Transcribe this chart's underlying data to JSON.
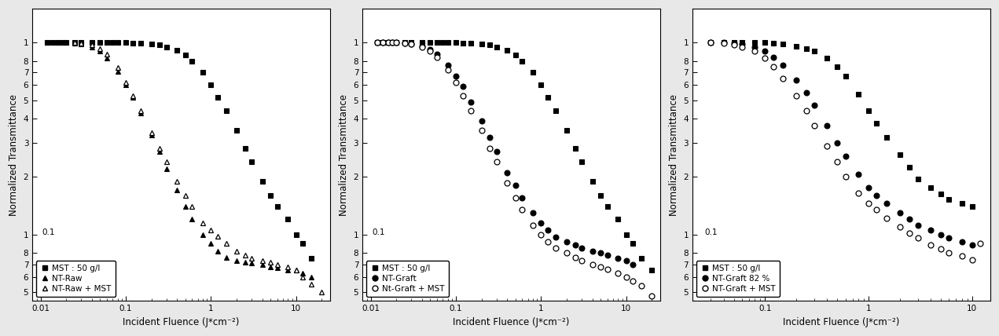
{
  "panels": [
    {
      "legend": [
        "MST : 50 g/l",
        "NT-Raw",
        "NT-Raw + MST"
      ],
      "markers": [
        "s",
        "^",
        "^"
      ],
      "fillstyles": [
        "full",
        "full",
        "none"
      ],
      "colors": [
        "black",
        "black",
        "black"
      ],
      "markersizes": [
        5,
        5,
        5
      ],
      "series": [
        {
          "x": [
            0.012,
            0.014,
            0.016,
            0.018,
            0.02,
            0.025,
            0.03,
            0.04,
            0.05,
            0.06,
            0.07,
            0.08,
            0.1,
            0.12,
            0.15,
            0.2,
            0.25,
            0.3,
            0.4,
            0.5,
            0.6,
            0.8,
            1.0,
            1.2,
            1.5,
            2.0,
            2.5,
            3.0,
            4.0,
            5.0,
            6.0,
            8.0,
            10.0,
            12.0,
            15.0
          ],
          "y": [
            1.0,
            1.0,
            1.0,
            1.0,
            1.0,
            1.0,
            1.0,
            1.0,
            1.0,
            1.0,
            1.0,
            1.0,
            1.0,
            0.99,
            0.99,
            0.98,
            0.97,
            0.95,
            0.91,
            0.86,
            0.8,
            0.7,
            0.6,
            0.52,
            0.44,
            0.35,
            0.28,
            0.24,
            0.19,
            0.16,
            0.14,
            0.12,
            0.1,
            0.09,
            0.075
          ]
        },
        {
          "x": [
            0.012,
            0.015,
            0.018,
            0.02,
            0.025,
            0.03,
            0.04,
            0.05,
            0.06,
            0.08,
            0.1,
            0.12,
            0.15,
            0.2,
            0.25,
            0.3,
            0.4,
            0.5,
            0.6,
            0.8,
            1.0,
            1.2,
            1.5,
            2.0,
            2.5,
            3.0,
            4.0,
            5.0,
            6.0,
            8.0,
            10.0,
            12.0,
            15.0
          ],
          "y": [
            1.0,
            1.0,
            1.0,
            1.0,
            0.99,
            0.98,
            0.95,
            0.9,
            0.83,
            0.71,
            0.6,
            0.52,
            0.43,
            0.33,
            0.27,
            0.22,
            0.17,
            0.14,
            0.12,
            0.1,
            0.09,
            0.082,
            0.076,
            0.073,
            0.072,
            0.071,
            0.07,
            0.068,
            0.067,
            0.065,
            0.065,
            0.063,
            0.06
          ]
        },
        {
          "x": [
            0.025,
            0.03,
            0.04,
            0.05,
            0.06,
            0.08,
            0.1,
            0.12,
            0.15,
            0.2,
            0.25,
            0.3,
            0.4,
            0.5,
            0.6,
            0.8,
            1.0,
            1.2,
            1.5,
            2.0,
            2.5,
            3.0,
            4.0,
            5.0,
            6.0,
            8.0,
            10.0,
            12.0,
            15.0,
            20.0
          ],
          "y": [
            1.0,
            0.99,
            0.97,
            0.93,
            0.87,
            0.74,
            0.62,
            0.53,
            0.44,
            0.34,
            0.28,
            0.24,
            0.19,
            0.16,
            0.14,
            0.115,
            0.105,
            0.098,
            0.09,
            0.082,
            0.078,
            0.075,
            0.073,
            0.072,
            0.07,
            0.068,
            0.065,
            0.06,
            0.055,
            0.05
          ]
        }
      ],
      "xlim": [
        0.008,
        25
      ],
      "ylim": [
        0.045,
        1.5
      ]
    },
    {
      "legend": [
        "MST : 50 g/l",
        "NT-Graft",
        "Nt-Graft + MST"
      ],
      "markers": [
        "s",
        "o",
        "o"
      ],
      "fillstyles": [
        "full",
        "full",
        "none"
      ],
      "colors": [
        "black",
        "black",
        "black"
      ],
      "markersizes": [
        5,
        5,
        5
      ],
      "series": [
        {
          "x": [
            0.012,
            0.014,
            0.016,
            0.018,
            0.02,
            0.025,
            0.03,
            0.04,
            0.05,
            0.06,
            0.07,
            0.08,
            0.1,
            0.12,
            0.15,
            0.2,
            0.25,
            0.3,
            0.4,
            0.5,
            0.6,
            0.8,
            1.0,
            1.2,
            1.5,
            2.0,
            2.5,
            3.0,
            4.0,
            5.0,
            6.0,
            8.0,
            10.0,
            12.0,
            15.0,
            20.0
          ],
          "y": [
            1.0,
            1.0,
            1.0,
            1.0,
            1.0,
            1.0,
            1.0,
            1.0,
            1.0,
            1.0,
            1.0,
            1.0,
            1.0,
            0.99,
            0.99,
            0.98,
            0.97,
            0.95,
            0.91,
            0.86,
            0.8,
            0.7,
            0.6,
            0.52,
            0.44,
            0.35,
            0.28,
            0.24,
            0.19,
            0.16,
            0.14,
            0.12,
            0.1,
            0.09,
            0.075,
            0.065
          ]
        },
        {
          "x": [
            0.012,
            0.014,
            0.016,
            0.018,
            0.02,
            0.025,
            0.03,
            0.04,
            0.05,
            0.06,
            0.08,
            0.1,
            0.12,
            0.15,
            0.2,
            0.25,
            0.3,
            0.4,
            0.5,
            0.6,
            0.8,
            1.0,
            1.2,
            1.5,
            2.0,
            2.5,
            3.0,
            4.0,
            5.0,
            6.0,
            8.0,
            10.0,
            12.0
          ],
          "y": [
            1.0,
            1.0,
            1.0,
            1.0,
            1.0,
            0.99,
            0.98,
            0.96,
            0.92,
            0.87,
            0.76,
            0.67,
            0.59,
            0.49,
            0.39,
            0.32,
            0.27,
            0.21,
            0.18,
            0.155,
            0.13,
            0.115,
            0.105,
            0.097,
            0.092,
            0.088,
            0.085,
            0.082,
            0.08,
            0.078,
            0.075,
            0.073,
            0.07
          ]
        },
        {
          "x": [
            0.012,
            0.014,
            0.016,
            0.018,
            0.02,
            0.025,
            0.03,
            0.04,
            0.05,
            0.06,
            0.08,
            0.1,
            0.12,
            0.15,
            0.2,
            0.25,
            0.3,
            0.4,
            0.5,
            0.6,
            0.8,
            1.0,
            1.2,
            1.5,
            2.0,
            2.5,
            3.0,
            4.0,
            5.0,
            6.0,
            8.0,
            10.0,
            12.0,
            15.0,
            20.0
          ],
          "y": [
            1.0,
            1.0,
            1.0,
            1.0,
            1.0,
            0.99,
            0.98,
            0.95,
            0.9,
            0.84,
            0.72,
            0.62,
            0.53,
            0.44,
            0.35,
            0.28,
            0.24,
            0.185,
            0.155,
            0.135,
            0.112,
            0.1,
            0.092,
            0.085,
            0.08,
            0.076,
            0.073,
            0.07,
            0.068,
            0.066,
            0.063,
            0.06,
            0.057,
            0.054,
            0.048
          ]
        }
      ],
      "xlim": [
        0.008,
        25
      ],
      "ylim": [
        0.045,
        1.5
      ]
    },
    {
      "legend": [
        "MST : 50 g/l",
        "NT-Graft 82 %",
        "NT-Graft + MST"
      ],
      "markers": [
        "s",
        "o",
        "o"
      ],
      "fillstyles": [
        "full",
        "full",
        "none"
      ],
      "colors": [
        "black",
        "black",
        "black"
      ],
      "markersizes": [
        5,
        5,
        5
      ],
      "series": [
        {
          "x": [
            0.03,
            0.04,
            0.05,
            0.06,
            0.08,
            0.1,
            0.12,
            0.15,
            0.2,
            0.25,
            0.3,
            0.4,
            0.5,
            0.6,
            0.8,
            1.0,
            1.2,
            1.5,
            2.0,
            2.5,
            3.0,
            4.0,
            5.0,
            6.0,
            8.0,
            10.0
          ],
          "y": [
            1.0,
            1.0,
            1.0,
            1.0,
            1.0,
            1.0,
            0.99,
            0.98,
            0.96,
            0.93,
            0.9,
            0.83,
            0.75,
            0.67,
            0.54,
            0.44,
            0.38,
            0.32,
            0.26,
            0.225,
            0.195,
            0.175,
            0.162,
            0.152,
            0.145,
            0.14
          ]
        },
        {
          "x": [
            0.03,
            0.04,
            0.05,
            0.06,
            0.08,
            0.1,
            0.12,
            0.15,
            0.2,
            0.25,
            0.3,
            0.4,
            0.5,
            0.6,
            0.8,
            1.0,
            1.2,
            1.5,
            2.0,
            2.5,
            3.0,
            4.0,
            5.0,
            6.0,
            8.0,
            10.0
          ],
          "y": [
            1.0,
            1.0,
            0.99,
            0.98,
            0.95,
            0.9,
            0.84,
            0.76,
            0.64,
            0.55,
            0.47,
            0.37,
            0.3,
            0.255,
            0.205,
            0.175,
            0.16,
            0.145,
            0.13,
            0.12,
            0.112,
            0.105,
            0.1,
            0.096,
            0.092,
            0.088
          ]
        },
        {
          "x": [
            0.03,
            0.04,
            0.05,
            0.06,
            0.08,
            0.1,
            0.12,
            0.15,
            0.2,
            0.25,
            0.3,
            0.4,
            0.5,
            0.6,
            0.8,
            1.0,
            1.2,
            1.5,
            2.0,
            2.5,
            3.0,
            4.0,
            5.0,
            6.0,
            8.0,
            10.0,
            12.0
          ],
          "y": [
            1.0,
            0.99,
            0.97,
            0.95,
            0.9,
            0.83,
            0.75,
            0.65,
            0.53,
            0.44,
            0.37,
            0.29,
            0.24,
            0.2,
            0.165,
            0.145,
            0.135,
            0.122,
            0.11,
            0.102,
            0.096,
            0.088,
            0.084,
            0.08,
            0.077,
            0.074,
            0.09
          ]
        }
      ],
      "xlim": [
        0.02,
        15
      ],
      "ylim": [
        0.045,
        1.5
      ]
    }
  ],
  "ylabel": "Normalized Transmittance",
  "xlabel": "Incident Fluence (J*cm⁻²)",
  "background_color": "#e8e8e8",
  "legend_fontsize": 7.5,
  "axis_fontsize": 8.5,
  "tick_fontsize": 7.5
}
